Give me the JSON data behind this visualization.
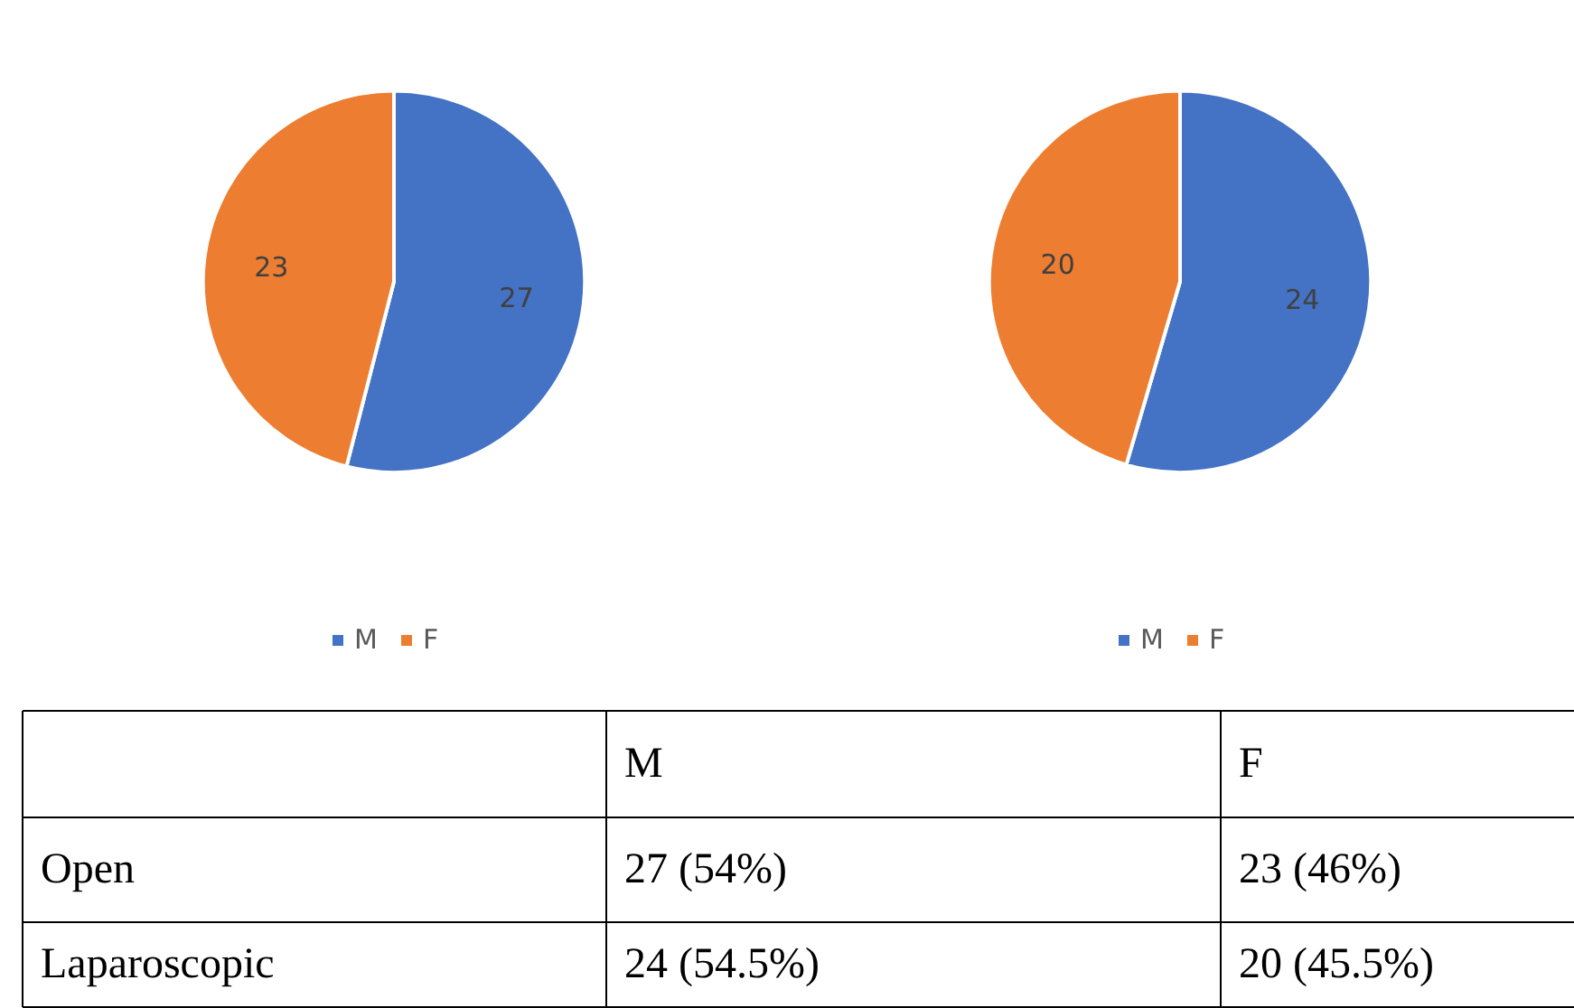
{
  "chart_data": [
    {
      "type": "pie",
      "categories": [
        "M",
        "F"
      ],
      "values": [
        27,
        23
      ],
      "colors": [
        "#4472c4",
        "#ed7d31"
      ],
      "data_labels": true,
      "legend": "bottom"
    },
    {
      "type": "pie",
      "categories": [
        "M",
        "F"
      ],
      "values": [
        24,
        20
      ],
      "colors": [
        "#4472c4",
        "#ed7d31"
      ],
      "data_labels": true,
      "legend": "bottom"
    },
    {
      "type": "other",
      "categories": [
        "M",
        "F"
      ],
      "y_categories": [
        "Open",
        "Laparoscopic"
      ],
      "cell_labels": [
        [
          "27 (54%)",
          "23 (46%)"
        ],
        [
          "24 (54.5%)",
          "20 (45.5%)"
        ]
      ]
    }
  ]
}
